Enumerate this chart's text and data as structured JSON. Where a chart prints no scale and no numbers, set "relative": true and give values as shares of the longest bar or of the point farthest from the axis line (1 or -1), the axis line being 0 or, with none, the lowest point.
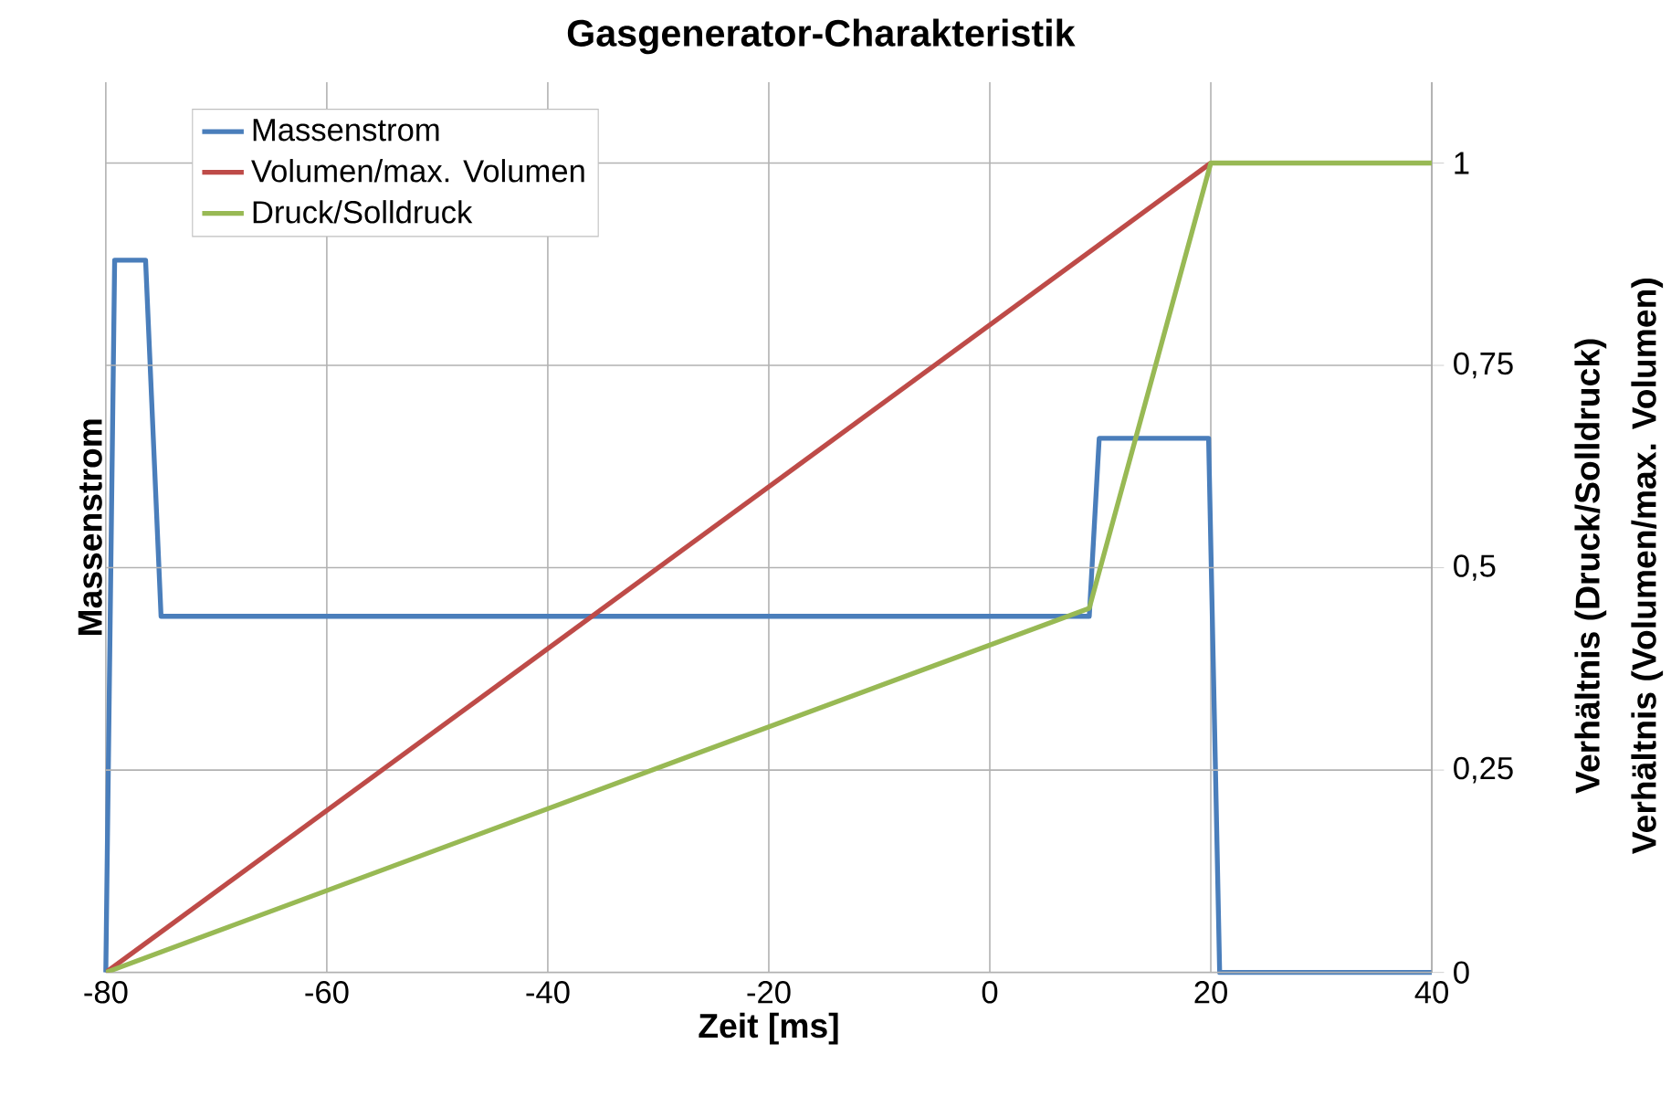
{
  "chart_data": {
    "type": "line",
    "title": "Gasgenerator-Charakteristik",
    "xlabel": "Zeit [ms]",
    "ylabel": "Massenstrom",
    "y2label": "Verhältnis (Druck/Solldruck)",
    "annotations": [
      "Verhältnis (Volumen/max. Volumen)"
    ],
    "relative": true,
    "xlim": [
      -80,
      40
    ],
    "xticks": [
      -80,
      -60,
      -40,
      -20,
      0,
      20,
      40
    ],
    "y2lim": [
      0,
      1.1
    ],
    "y2ticks": [
      0,
      {
        "value": 0.25,
        "label": "0,25"
      },
      {
        "value": 0.5,
        "label": "0,5"
      },
      {
        "value": 0.75,
        "label": "0,75"
      },
      1
    ],
    "grid": true,
    "legend": "top left",
    "marker": "none",
    "line_style": "solid",
    "series": [
      {
        "name": "Massenstrom",
        "color": "#4a7ebb",
        "x": [
          -80,
          -79.2,
          -76.4,
          -75,
          9,
          9.9,
          19.8,
          20.8,
          40
        ],
        "values": [
          0,
          1,
          1,
          0.5,
          0.5,
          0.75,
          0.75,
          0,
          0
        ]
      },
      {
        "name": "Volumen/max. Volumen",
        "color": "#be4b48",
        "axis": "y2",
        "x": [
          -80,
          20
        ],
        "values": [
          0,
          1
        ]
      },
      {
        "name": "Druck/Solldruck",
        "color": "#98b954",
        "axis": "y2",
        "x": [
          -80,
          9,
          20,
          40
        ],
        "values": [
          0,
          0.45,
          1,
          1
        ]
      }
    ]
  }
}
